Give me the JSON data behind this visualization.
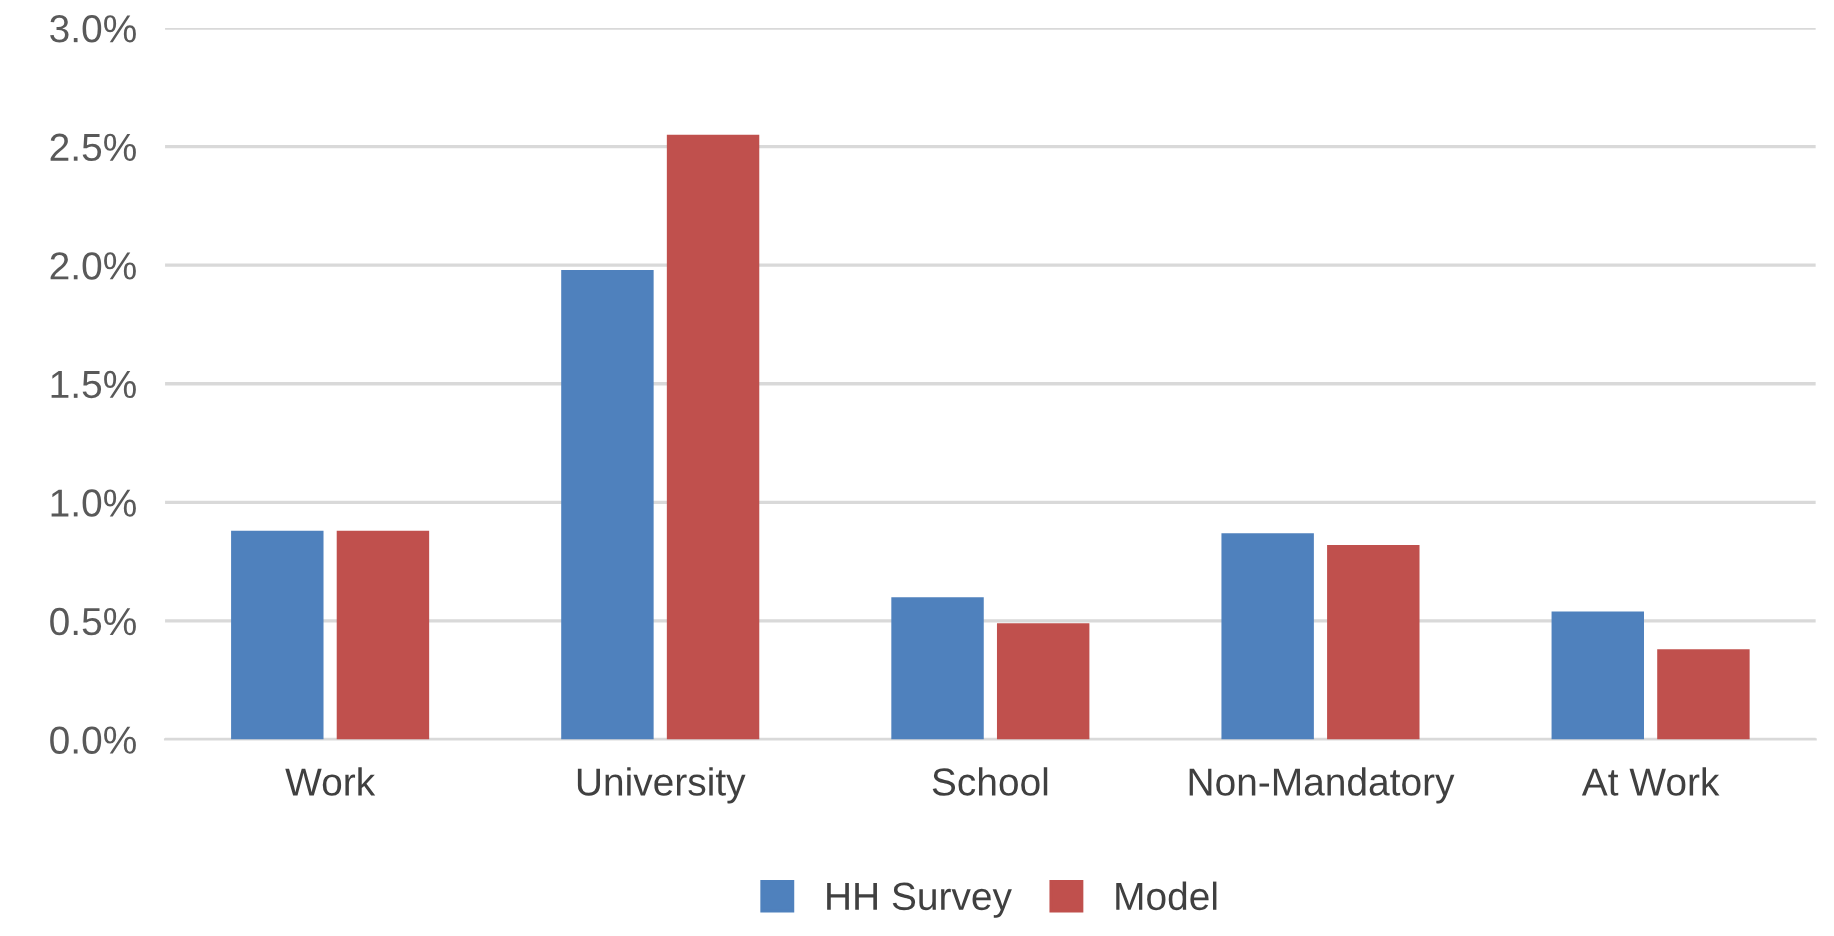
{
  "chart_data": {
    "type": "bar",
    "categories": [
      "Work",
      "University",
      "School",
      "Non-Mandatory",
      "At Work"
    ],
    "series": [
      {
        "name": "HH Survey",
        "color": "#4f81bd",
        "values": [
          0.88,
          1.98,
          0.6,
          0.87,
          0.54
        ]
      },
      {
        "name": "Model",
        "color": "#c0504d",
        "values": [
          0.88,
          2.55,
          0.49,
          0.82,
          0.38
        ]
      }
    ],
    "ylim": [
      0,
      3.0
    ],
    "yticks": [
      {
        "value": 0,
        "label": "0.0%"
      },
      {
        "value": 0.5,
        "label": "0.5%"
      },
      {
        "value": 1.0,
        "label": "1.0%"
      },
      {
        "value": 1.5,
        "label": "1.5%"
      },
      {
        "value": 2.0,
        "label": "2.0%"
      },
      {
        "value": 2.5,
        "label": "2.5%"
      },
      {
        "value": 3.0,
        "label": "3.0%"
      }
    ],
    "grid": "y",
    "legend": "bottom"
  }
}
